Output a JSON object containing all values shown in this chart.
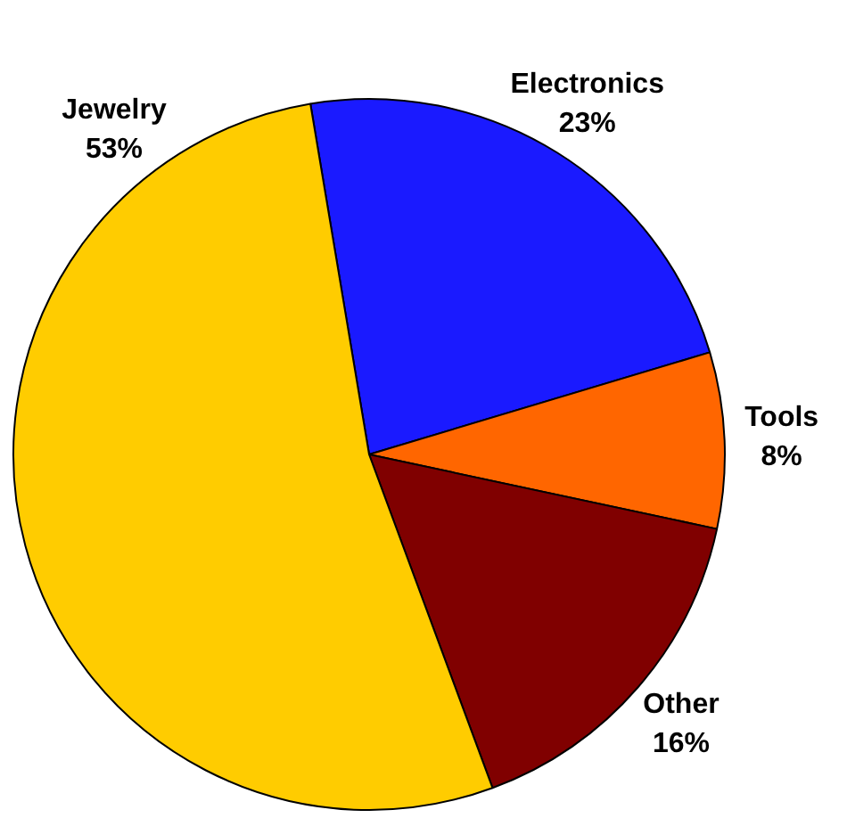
{
  "chart_data": {
    "type": "pie",
    "categories": [
      "Electronics",
      "Tools",
      "Other",
      "Jewelry"
    ],
    "values": [
      23,
      8,
      16,
      53
    ],
    "colors": [
      "#1a1aff",
      "#ff6600",
      "#800000",
      "#ffcc00"
    ],
    "value_labels": [
      "23%",
      "8%",
      "16%",
      "53%"
    ],
    "legend": false
  }
}
